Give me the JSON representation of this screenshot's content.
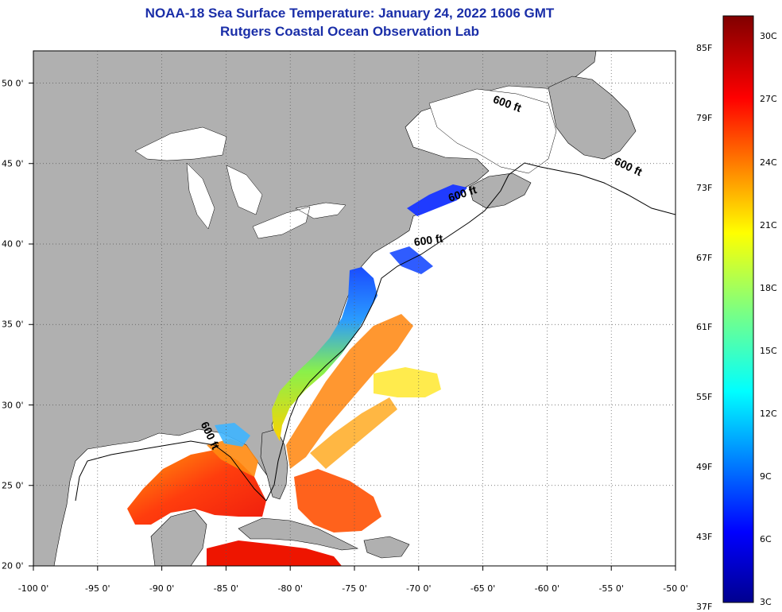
{
  "title": {
    "line1": "NOAA-18 Sea Surface Temperature:  January 24, 2022 1606 GMT",
    "line2": "Rutgers Coastal Ocean Observation Lab"
  },
  "map": {
    "projection": "lon-lat",
    "lon_range": [
      -100,
      -50
    ],
    "lat_range": [
      20,
      52
    ],
    "x_ticks": [
      {
        "value": -100,
        "label": "-100 0'"
      },
      {
        "value": -95,
        "label": "-95 0'"
      },
      {
        "value": -90,
        "label": "-90 0'"
      },
      {
        "value": -85,
        "label": "-85 0'"
      },
      {
        "value": -80,
        "label": "-80 0'"
      },
      {
        "value": -75,
        "label": "-75 0'"
      },
      {
        "value": -70,
        "label": "-70 0'"
      },
      {
        "value": -65,
        "label": "-65 0'"
      },
      {
        "value": -60,
        "label": "-60 0'"
      },
      {
        "value": -55,
        "label": "-55 0'"
      },
      {
        "value": -50,
        "label": "-50 0'"
      }
    ],
    "y_ticks": [
      {
        "value": 50,
        "label": "50 0'"
      },
      {
        "value": 45,
        "label": "45 0'"
      },
      {
        "value": 40,
        "label": "40 0'"
      },
      {
        "value": 35,
        "label": "35 0'"
      },
      {
        "value": 30,
        "label": "30 0'"
      },
      {
        "value": 25,
        "label": "25 0'"
      },
      {
        "value": 20,
        "label": "20 0'"
      }
    ],
    "grid": true,
    "land_color": "#b0b0b0",
    "no_data_color": "#ffffff",
    "contour_labels": [
      {
        "text": "600 ft",
        "lon": -63.2,
        "lat": 48.5,
        "angle": 20
      },
      {
        "text": "600 ft",
        "lon": -53.8,
        "lat": 44.6,
        "angle": 25
      },
      {
        "text": "600 ft",
        "lon": -66.5,
        "lat": 42.9,
        "angle": -18
      },
      {
        "text": "600 ft",
        "lon": -69.2,
        "lat": 40.0,
        "angle": -8
      },
      {
        "text": "600 ft",
        "lon": -86.5,
        "lat": 28.0,
        "angle": 65
      }
    ]
  },
  "colorbar": {
    "f_labels": [
      {
        "value": 85,
        "label": "85F"
      },
      {
        "value": 79,
        "label": "79F"
      },
      {
        "value": 73,
        "label": "73F"
      },
      {
        "value": 67,
        "label": "67F"
      },
      {
        "value": 61,
        "label": "61F"
      },
      {
        "value": 55,
        "label": "55F"
      },
      {
        "value": 49,
        "label": "49F"
      },
      {
        "value": 43,
        "label": "43F"
      },
      {
        "value": 37,
        "label": "37F"
      }
    ],
    "c_labels": [
      {
        "value": 30,
        "label": "30C"
      },
      {
        "value": 27,
        "label": "27C"
      },
      {
        "value": 24,
        "label": "24C"
      },
      {
        "value": 21,
        "label": "21C"
      },
      {
        "value": 18,
        "label": "18C"
      },
      {
        "value": 15,
        "label": "15C"
      },
      {
        "value": 12,
        "label": "12C"
      },
      {
        "value": 9,
        "label": "9C"
      },
      {
        "value": 6,
        "label": "6C"
      },
      {
        "value": 3,
        "label": "3C"
      }
    ],
    "range_c": [
      3,
      31
    ]
  }
}
